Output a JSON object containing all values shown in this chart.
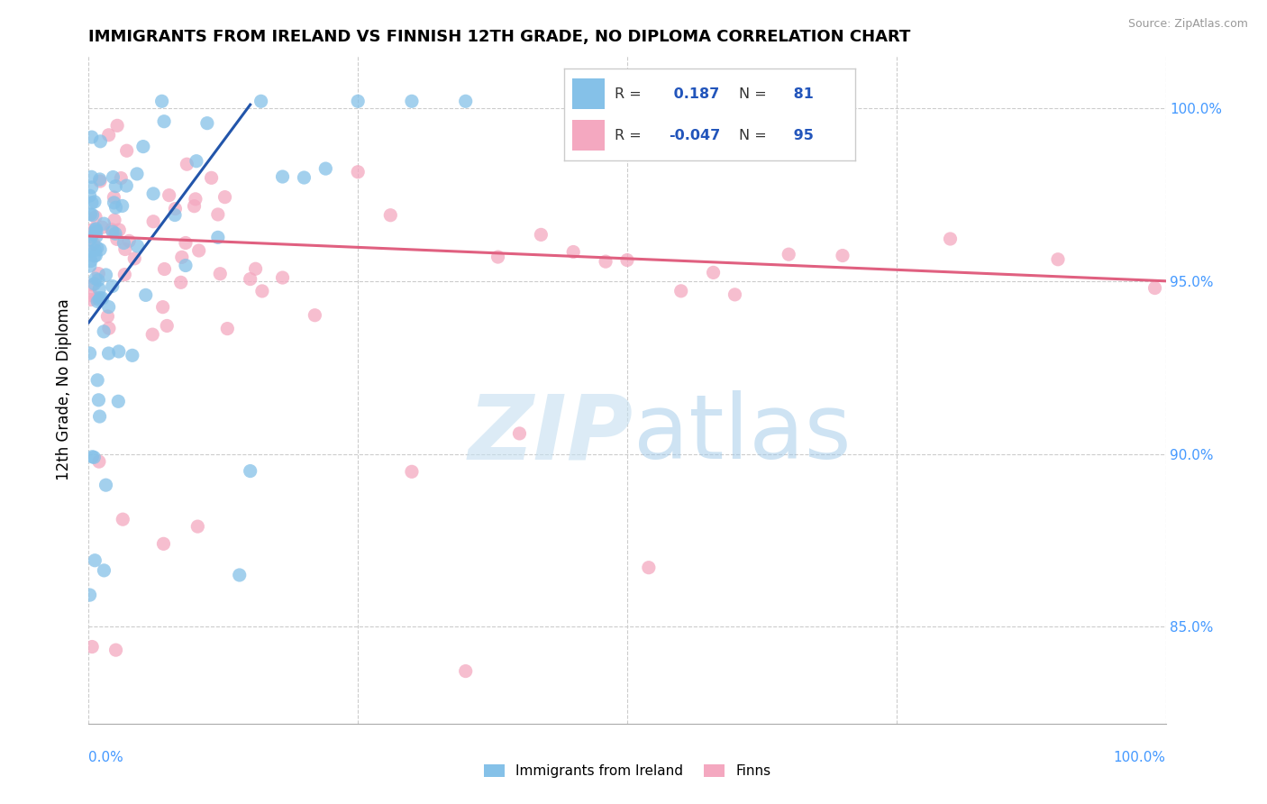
{
  "title": "IMMIGRANTS FROM IRELAND VS FINNISH 12TH GRADE, NO DIPLOMA CORRELATION CHART",
  "source": "Source: ZipAtlas.com",
  "ylabel": "12th Grade, No Diploma",
  "legend_label1": "Immigrants from Ireland",
  "legend_label2": "Finns",
  "R1": 0.187,
  "N1": 81,
  "R2": -0.047,
  "N2": 95,
  "blue_color": "#85c1e8",
  "pink_color": "#f4a8c0",
  "blue_line_color": "#2255aa",
  "pink_line_color": "#e06080",
  "right_ytick_labels": [
    "85.0%",
    "90.0%",
    "95.0%",
    "100.0%"
  ],
  "right_ytick_values": [
    0.85,
    0.9,
    0.95,
    1.0
  ],
  "xmin": 0.0,
  "xmax": 1.0,
  "ymin": 0.822,
  "ymax": 1.015,
  "blue_trend_x0": 0.0,
  "blue_trend_y0": 0.938,
  "blue_trend_x1": 0.15,
  "blue_trend_y1": 1.001,
  "pink_trend_x0": 0.0,
  "pink_trend_y0": 0.963,
  "pink_trend_x1": 1.0,
  "pink_trend_y1": 0.95
}
